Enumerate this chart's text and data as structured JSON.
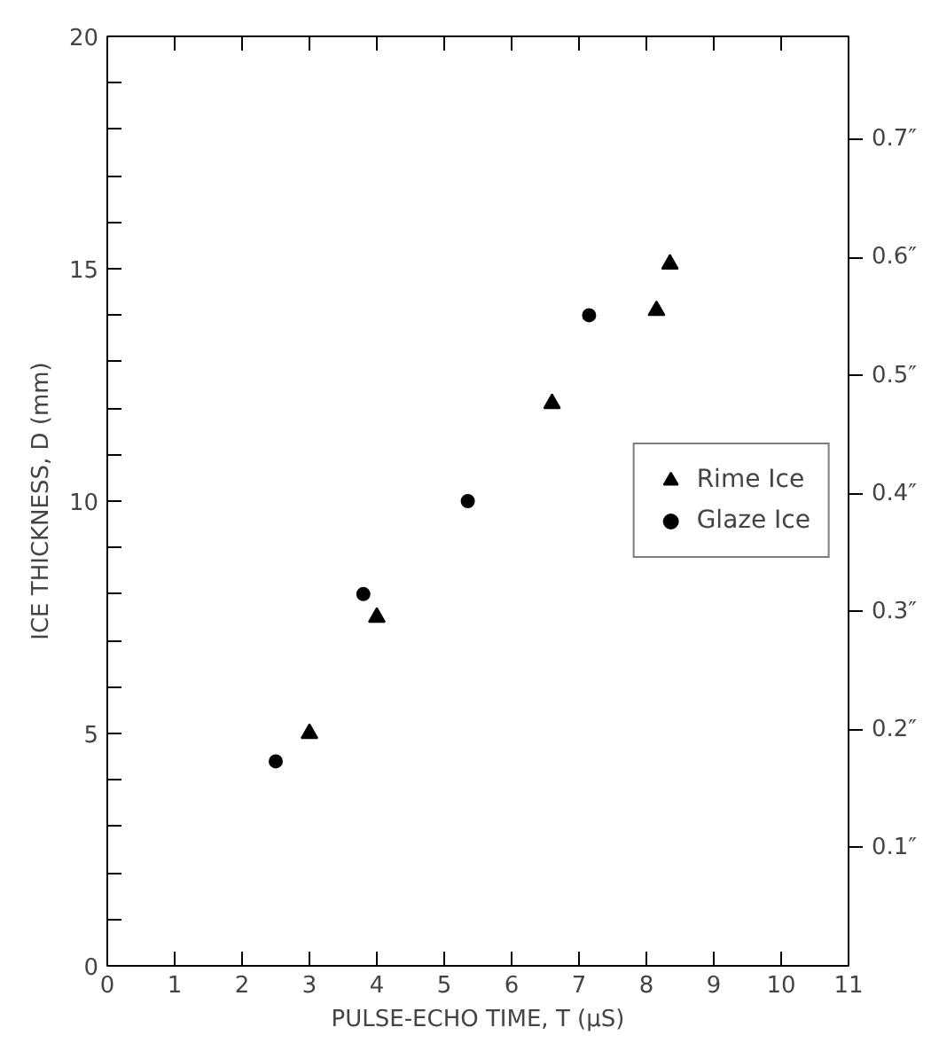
{
  "chart_data": {
    "type": "scatter",
    "xlabel": "PULSE-ECHO TIME, T (µS)",
    "ylabel": "ICE THICKNESS, D (mm)",
    "xlim": [
      0,
      11
    ],
    "xticks": [
      0,
      1,
      2,
      3,
      4,
      5,
      6,
      7,
      8,
      9,
      10,
      11
    ],
    "ylim": [
      0,
      20
    ],
    "yticks": [
      0,
      {
        "value": 1,
        "label": null
      },
      {
        "value": 2,
        "label": null
      },
      {
        "value": 3,
        "label": null
      },
      {
        "value": 4,
        "label": null
      },
      5,
      {
        "value": 6,
        "label": null
      },
      {
        "value": 7,
        "label": null
      },
      {
        "value": 8,
        "label": null
      },
      {
        "value": 9,
        "label": null
      },
      10,
      {
        "value": 11,
        "label": null
      },
      {
        "value": 12,
        "label": null
      },
      {
        "value": 13,
        "label": null
      },
      {
        "value": 14,
        "label": null
      },
      15,
      {
        "value": 16,
        "label": null
      },
      {
        "value": 17,
        "label": null
      },
      {
        "value": 18,
        "label": null
      },
      {
        "value": 19,
        "label": null
      },
      20
    ],
    "y2lim": [
      0,
      0.7874
    ],
    "y2ticks": [
      {
        "value": 0.1,
        "label": "0.1″"
      },
      {
        "value": 0.2,
        "label": "0.2″"
      },
      {
        "value": 0.3,
        "label": "0.3″"
      },
      {
        "value": 0.4,
        "label": "0.4″"
      },
      {
        "value": 0.5,
        "label": "0.5″"
      },
      {
        "value": 0.6,
        "label": "0.6″"
      },
      {
        "value": 0.7,
        "label": "0.7″"
      }
    ],
    "grid": false,
    "legend": "right",
    "series": [
      {
        "name": "Rime Ice",
        "color": "#000000",
        "marker": "triangle",
        "x": [
          3.0,
          4.0,
          6.6,
          8.15,
          8.35
        ],
        "values": [
          5.0,
          7.5,
          12.1,
          14.1,
          15.1
        ]
      },
      {
        "name": "Glaze Ice",
        "color": "#000000",
        "marker": "circle",
        "x": [
          2.5,
          3.8,
          5.35,
          7.15
        ],
        "values": [
          4.4,
          8.0,
          10.0,
          14.0
        ]
      }
    ]
  }
}
